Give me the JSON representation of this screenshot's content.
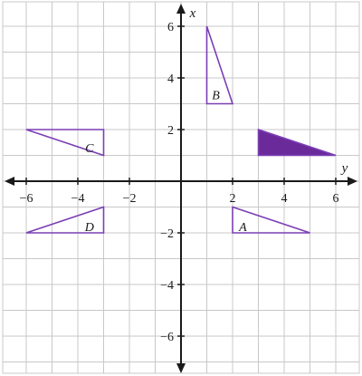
{
  "axes": {
    "x_name": "y",
    "y_name": "x",
    "xlim": [
      -7,
      7
    ],
    "ylim": [
      -7.5,
      7
    ],
    "x_ticks": [
      {
        "value": -6,
        "label": "−6"
      },
      {
        "value": -4,
        "label": "−4"
      },
      {
        "value": -2,
        "label": "−2"
      },
      {
        "value": 2,
        "label": "2"
      },
      {
        "value": 4,
        "label": "4"
      },
      {
        "value": 6,
        "label": "6"
      }
    ],
    "y_ticks": [
      {
        "value": 6,
        "label": "6"
      },
      {
        "value": 4,
        "label": "4"
      },
      {
        "value": 2,
        "label": "2"
      },
      {
        "value": -2,
        "label": "−2"
      },
      {
        "value": -4,
        "label": "−4"
      },
      {
        "value": -6,
        "label": "−6"
      }
    ],
    "grid": true
  },
  "colors": {
    "outline": "#7b3fb5",
    "fill": "#6a2a9a",
    "grid": "#c8c8c8",
    "axis": "#1a1a1a"
  },
  "shapes": [
    {
      "id": "object",
      "label": "",
      "filled": true,
      "points": [
        [
          3,
          2
        ],
        [
          3,
          1
        ],
        [
          6,
          1
        ]
      ]
    },
    {
      "id": "A",
      "label": "A",
      "filled": false,
      "points": [
        [
          2,
          -1
        ],
        [
          2,
          -2
        ],
        [
          5,
          -2
        ]
      ],
      "label_at": [
        2.4,
        -1.75
      ]
    },
    {
      "id": "B",
      "label": "B",
      "filled": false,
      "points": [
        [
          1,
          6
        ],
        [
          1,
          3
        ],
        [
          2,
          3
        ]
      ],
      "label_at": [
        1.35,
        3.35
      ]
    },
    {
      "id": "C",
      "label": "C",
      "filled": false,
      "points": [
        [
          -6,
          2
        ],
        [
          -3,
          2
        ],
        [
          -3,
          1
        ]
      ],
      "label_at": [
        -3.55,
        1.3
      ]
    },
    {
      "id": "D",
      "label": "D",
      "filled": false,
      "points": [
        [
          -6,
          -2
        ],
        [
          -3,
          -2
        ],
        [
          -3,
          -1
        ]
      ],
      "label_at": [
        -3.55,
        -1.75
      ]
    }
  ]
}
